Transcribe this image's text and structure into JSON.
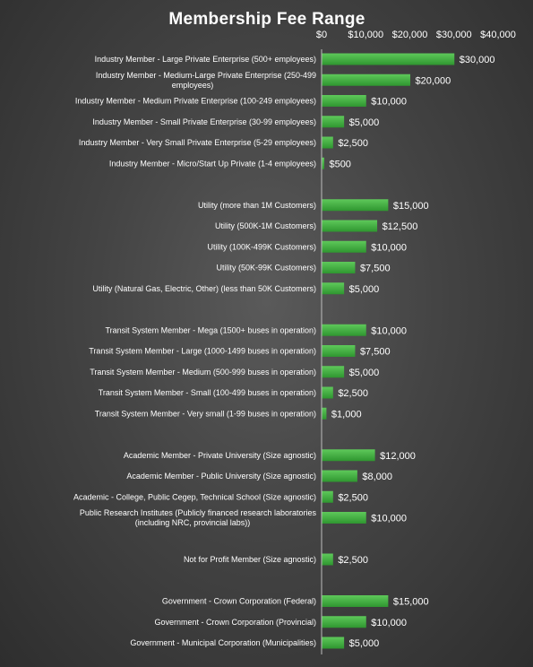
{
  "chart_data": {
    "type": "bar",
    "orientation": "horizontal",
    "title": "Membership Fee Range",
    "xlim": [
      0,
      40000
    ],
    "x_ticks": [
      "$0",
      "$10,000",
      "$20,000",
      "$30,000",
      "$40,000"
    ],
    "x_axis_position": "top",
    "grid": false,
    "legend": "none",
    "colors": {
      "bar_top": "#5ec95a",
      "bar_bottom": "#2f9630",
      "text": "#ffffff",
      "background": "#444444"
    },
    "categories": [
      "Industry Member - Large Private Enterprise (500+ employees)",
      "Industry Member - Medium-Large Private Enterprise (250-499 employees)",
      "Industry Member - Medium Private Enterprise (100-249 employees)",
      "Industry Member - Small Private Enterprise (30-99 employees)",
      "Industry Member - Very Small Private Enterprise (5-29 employees)",
      "Industry Member - Micro/Start Up Private (1-4 employees)",
      "",
      "Utility (more than 1M Customers)",
      "Utility (500K-1M Customers)",
      "Utility (100K-499K Customers)",
      "Utility (50K-99K Customers)",
      "Utility (Natural Gas, Electric, Other) (less than 50K Customers)",
      "",
      "Transit System Member - Mega (1500+ buses in operation)",
      "Transit System Member - Large (1000-1499 buses in operation)",
      "Transit System Member - Medium (500-999 buses in operation)",
      "Transit System Member - Small (100-499 buses in operation)",
      "Transit System Member - Very small (1-99 buses in operation)",
      "",
      "Academic Member - Private University (Size agnostic)",
      "Academic Member - Public University (Size agnostic)",
      "Academic - College, Public Cegep, Technical School (Size agnostic)",
      "Public Research Institutes (Publicly financed research laboratories (including NRC, provincial labs))",
      "",
      "Not for Profit Member (Size agnostic)",
      "",
      "Government - Crown Corporation (Federal)",
      "Government - Crown Corporation (Provincial)",
      "Government - Municipal Corporation (Municipalities)"
    ],
    "category_lines": [
      [
        "Industry Member - Large Private Enterprise (500+ employees)"
      ],
      [
        "Industry Member - Medium-Large Private Enterprise (250-499",
        "employees)"
      ],
      [
        "Industry Member - Medium Private Enterprise (100-249 employees)"
      ],
      [
        "Industry Member - Small Private Enterprise (30-99 employees)"
      ],
      [
        "Industry Member - Very Small Private Enterprise (5-29 employees)"
      ],
      [
        "Industry Member - Micro/Start Up Private (1-4 employees)"
      ],
      [],
      [
        "Utility (more than 1M Customers)"
      ],
      [
        "Utility (500K-1M Customers)"
      ],
      [
        "Utility (100K-499K Customers)"
      ],
      [
        "Utility (50K-99K Customers)"
      ],
      [
        "Utility (Natural Gas, Electric, Other) (less than 50K Customers)"
      ],
      [],
      [
        "Transit System Member - Mega (1500+ buses in operation)"
      ],
      [
        "Transit System Member - Large (1000-1499 buses in operation)"
      ],
      [
        "Transit System Member - Medium (500-999 buses in operation)"
      ],
      [
        "Transit System Member - Small (100-499 buses in operation)"
      ],
      [
        "Transit System Member - Very small (1-99 buses in operation)"
      ],
      [],
      [
        "Academic Member - Private University (Size agnostic)"
      ],
      [
        "Academic Member - Public University (Size agnostic)"
      ],
      [
        "Academic - College, Public Cegep, Technical School (Size agnostic)"
      ],
      [
        "Public Research Institutes (Publicly financed research laboratories",
        "(including NRC, provincial labs))"
      ],
      [],
      [
        "Not for Profit Member (Size agnostic)"
      ],
      [],
      [
        "Government - Crown Corporation (Federal)"
      ],
      [
        "Government - Crown Corporation (Provincial)"
      ],
      [
        "Government - Municipal Corporation (Municipalities)"
      ]
    ],
    "values": [
      30000,
      20000,
      10000,
      5000,
      2500,
      500,
      null,
      15000,
      12500,
      10000,
      7500,
      5000,
      null,
      10000,
      7500,
      5000,
      2500,
      1000,
      null,
      12000,
      8000,
      2500,
      10000,
      null,
      2500,
      null,
      15000,
      10000,
      5000
    ],
    "data_labels": [
      "$30,000",
      "$20,000",
      "$10,000",
      "$5,000",
      "$2,500",
      "$500",
      "",
      "$15,000",
      "$12,500",
      "$10,000",
      "$7,500",
      "$5,000",
      "",
      "$10,000",
      "$7,500",
      "$5,000",
      "$2,500",
      "$1,000",
      "",
      "$12,000",
      "$8,000",
      "$2,500",
      "$10,000",
      "",
      "$2,500",
      "",
      "$15,000",
      "$10,000",
      "$5,000"
    ]
  }
}
